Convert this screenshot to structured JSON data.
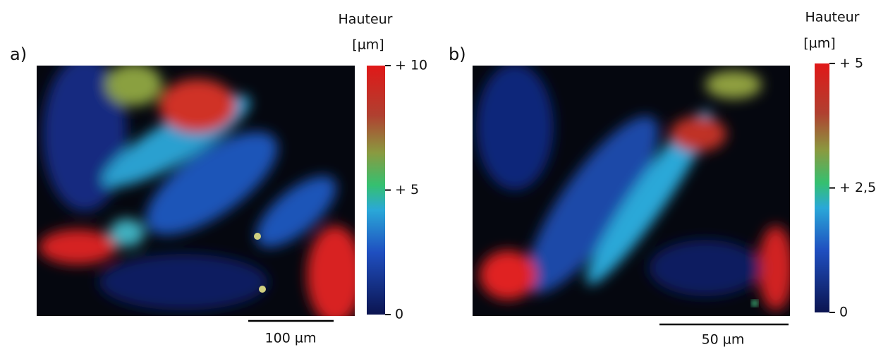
{
  "panels": [
    {
      "label": "a)",
      "colorbar_title": "Hauteur",
      "colorbar_unit": "[µm]",
      "colorbar_lim": [
        0,
        10
      ],
      "colorbar_ticks": [
        {
          "value": 10,
          "label": "+ 10"
        },
        {
          "value": 5,
          "label": "+ 5"
        },
        0
      ],
      "scale_bar": "100 µm"
    },
    {
      "label": "b)",
      "colorbar_title": "Hauteur",
      "colorbar_unit": "[µm]",
      "colorbar_lim": [
        0,
        5
      ],
      "colorbar_ticks": [
        {
          "value": 5,
          "label": "+ 5"
        },
        {
          "value": 2.5,
          "label": "+ 2,5"
        },
        0
      ],
      "scale_bar": "50 µm"
    }
  ]
}
